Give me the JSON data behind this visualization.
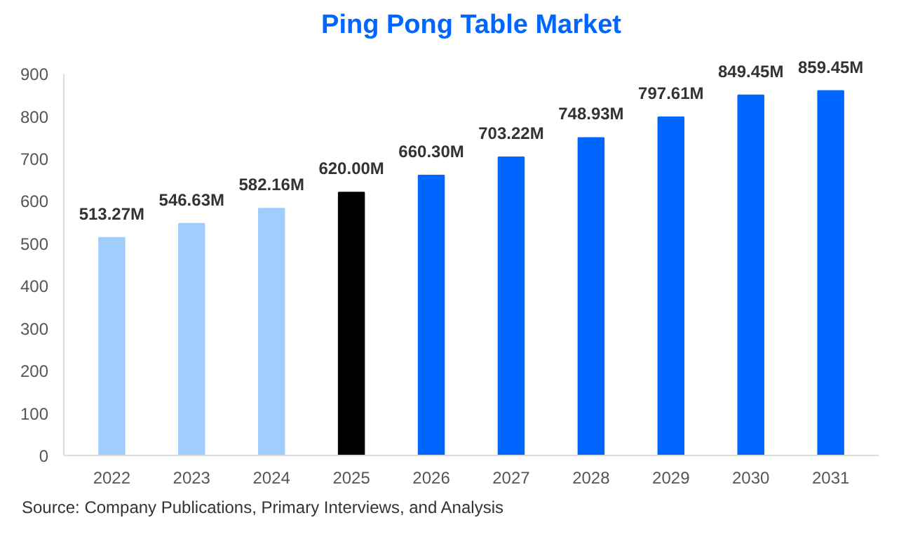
{
  "chart_data": {
    "type": "bar",
    "title": "Ping Pong Table Market",
    "categories": [
      "2022",
      "2023",
      "2024",
      "2025",
      "2026",
      "2027",
      "2028",
      "2029",
      "2030",
      "2031"
    ],
    "values": [
      513.27,
      546.63,
      582.16,
      620.0,
      660.3,
      703.22,
      748.93,
      797.61,
      849.45,
      859.45
    ],
    "colors": [
      "#a0cdfb",
      "#a0cdfb",
      "#a0cdfb",
      "#000000",
      "#0066ff",
      "#0066ff",
      "#0066ff",
      "#0066ff",
      "#0066ff",
      "#0066ff"
    ],
    "value_labels": [
      "513.27M",
      "546.63M",
      "582.16M",
      "620.00M",
      "660.30M",
      "703.22M",
      "748.93M",
      "797.61M",
      "849.45M",
      "859.45M"
    ],
    "ylim": [
      0,
      900
    ],
    "yticks": [
      0,
      100,
      200,
      300,
      400,
      500,
      600,
      700,
      800,
      900
    ],
    "grid": false,
    "annotations": [
      "Source: Company Publications, Primary Interviews, and Analysis"
    ]
  }
}
